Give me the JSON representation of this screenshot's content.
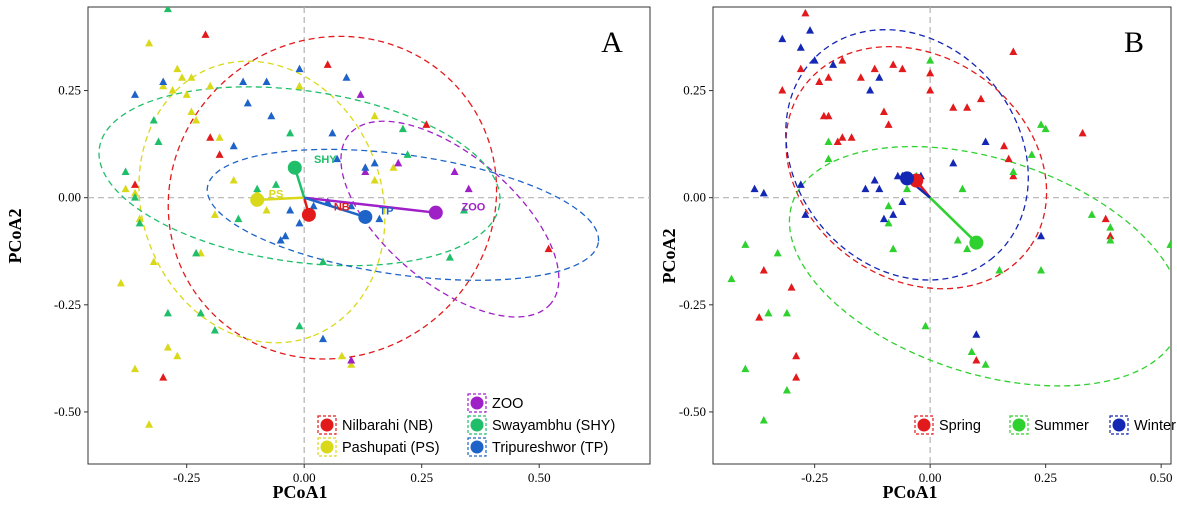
{
  "chart_data": [
    {
      "type": "scatter",
      "panel_label": "A",
      "xlabel": "PCoA1",
      "ylabel": "PCoA2",
      "xlim": [
        -0.46,
        0.68
      ],
      "ylim": [
        -0.585,
        0.445
      ],
      "xticks": [
        -0.25,
        0.0,
        0.25,
        0.5
      ],
      "xtick_labels": [
        "-0.25",
        "0.00",
        "0.25",
        "0.50"
      ],
      "yticks": [
        0.25,
        0.0,
        -0.25,
        -0.5
      ],
      "ytick_labels": [
        "0.25",
        "0.00",
        "-0.25",
        "-0.50"
      ],
      "grid": false,
      "reference_lines": [
        0,
        0
      ],
      "legend_position": "bottom-right",
      "groups": [
        {
          "name": "Nilbarahi (NB)",
          "label": "NB",
          "color": "#e31a1c",
          "centroid": [
            0.01,
            -0.04
          ],
          "label_pos": [
            0.08,
            -0.02
          ],
          "ellipse": {
            "cx": 0.06,
            "cy": 0.0,
            "rx": 0.355,
            "ry": 0.37,
            "angle": 35
          },
          "points": [
            [
              -0.21,
              0.38
            ],
            [
              -0.2,
              0.14
            ],
            [
              0.05,
              0.31
            ],
            [
              0.26,
              0.17
            ],
            [
              -0.3,
              -0.42
            ],
            [
              -0.36,
              0.03
            ],
            [
              0.52,
              -0.12
            ],
            [
              -0.18,
              0.1
            ]
          ]
        },
        {
          "name": "Pashupati (PS)",
          "label": "PS",
          "color": "#d9d91a",
          "centroid": [
            -0.1,
            -0.005
          ],
          "label_pos": [
            -0.06,
            0.01
          ],
          "ellipse": {
            "cx": -0.09,
            "cy": -0.01,
            "rx": 0.305,
            "ry": 0.28,
            "angle": -70
          },
          "points": [
            [
              -0.33,
              0.36
            ],
            [
              -0.3,
              0.26
            ],
            [
              -0.28,
              0.25
            ],
            [
              -0.27,
              0.3
            ],
            [
              -0.26,
              0.28
            ],
            [
              -0.24,
              0.28
            ],
            [
              -0.25,
              0.24
            ],
            [
              -0.24,
              0.2
            ],
            [
              -0.23,
              0.18
            ],
            [
              -0.2,
              0.26
            ],
            [
              -0.18,
              0.14
            ],
            [
              -0.38,
              0.02
            ],
            [
              -0.36,
              0.01
            ],
            [
              -0.35,
              -0.05
            ],
            [
              -0.32,
              -0.15
            ],
            [
              -0.39,
              -0.2
            ],
            [
              -0.36,
              -0.4
            ],
            [
              -0.33,
              -0.53
            ],
            [
              -0.29,
              -0.35
            ],
            [
              -0.27,
              -0.37
            ],
            [
              -0.22,
              -0.13
            ],
            [
              -0.19,
              -0.04
            ],
            [
              -0.15,
              0.04
            ],
            [
              -0.1,
              0.01
            ],
            [
              -0.08,
              -0.03
            ],
            [
              -0.01,
              0.26
            ],
            [
              0.08,
              -0.37
            ],
            [
              0.1,
              -0.39
            ],
            [
              0.15,
              0.04
            ],
            [
              0.15,
              0.19
            ],
            [
              0.19,
              0.07
            ]
          ]
        },
        {
          "name": "ZOO",
          "label": "ZOO",
          "color": "#a020c8",
          "centroid": [
            0.28,
            -0.035
          ],
          "label_pos": [
            0.36,
            -0.02
          ],
          "ellipse": {
            "cx": 0.31,
            "cy": -0.05,
            "rx": 0.28,
            "ry": 0.15,
            "angle": -40
          },
          "points": [
            [
              0.12,
              0.24
            ],
            [
              0.2,
              0.08
            ],
            [
              0.13,
              0.06
            ],
            [
              0.32,
              0.06
            ],
            [
              0.35,
              0.02
            ],
            [
              0.1,
              -0.38
            ]
          ]
        },
        {
          "name": "Swayambhu (SHY)",
          "label": "SHY",
          "color": "#1fbf6a",
          "centroid": [
            -0.02,
            0.07
          ],
          "label_pos": [
            0.045,
            0.09
          ],
          "ellipse": {
            "cx": -0.01,
            "cy": 0.05,
            "rx": 0.43,
            "ry": 0.2,
            "angle": -8
          },
          "points": [
            [
              -0.29,
              0.44
            ],
            [
              -0.32,
              0.18
            ],
            [
              -0.31,
              0.13
            ],
            [
              -0.38,
              0.06
            ],
            [
              -0.36,
              0.0
            ],
            [
              -0.23,
              -0.13
            ],
            [
              -0.35,
              -0.06
            ],
            [
              -0.22,
              -0.27
            ],
            [
              -0.29,
              -0.27
            ],
            [
              -0.19,
              -0.31
            ],
            [
              -0.14,
              -0.05
            ],
            [
              -0.1,
              0.02
            ],
            [
              -0.06,
              0.03
            ],
            [
              -0.03,
              0.15
            ],
            [
              -0.02,
              0.07
            ],
            [
              -0.01,
              -0.3
            ],
            [
              0.04,
              -0.15
            ],
            [
              0.21,
              0.16
            ],
            [
              0.34,
              -0.03
            ],
            [
              0.31,
              -0.14
            ],
            [
              0.22,
              0.1
            ]
          ]
        },
        {
          "name": "Tripureshwor (TP)",
          "label": "TP",
          "color": "#1e64c8",
          "centroid": [
            0.13,
            -0.045
          ],
          "label_pos": [
            0.175,
            -0.03
          ],
          "ellipse": {
            "cx": 0.21,
            "cy": -0.04,
            "rx": 0.42,
            "ry": 0.14,
            "angle": -8
          },
          "points": [
            [
              -0.36,
              0.24
            ],
            [
              -0.3,
              0.27
            ],
            [
              -0.13,
              0.27
            ],
            [
              -0.08,
              0.27
            ],
            [
              0.09,
              0.28
            ],
            [
              0.06,
              0.15
            ],
            [
              -0.07,
              0.19
            ],
            [
              -0.12,
              0.22
            ],
            [
              0.07,
              0.09
            ],
            [
              0.13,
              0.07
            ],
            [
              0.15,
              0.08
            ],
            [
              0.02,
              -0.02
            ],
            [
              -0.03,
              -0.03
            ],
            [
              -0.01,
              -0.06
            ],
            [
              0.05,
              -0.01
            ],
            [
              -0.01,
              0.3
            ],
            [
              -0.04,
              -0.09
            ],
            [
              0.04,
              -0.33
            ],
            [
              0.1,
              -0.02
            ],
            [
              0.16,
              -0.05
            ],
            [
              -0.15,
              0.12
            ],
            [
              -0.05,
              -0.1
            ]
          ]
        }
      ]
    },
    {
      "type": "scatter",
      "panel_label": "B",
      "xlabel": "PCoA1",
      "ylabel": "PCoA2",
      "xlim": [
        -0.47,
        0.66
      ],
      "ylim": [
        -0.585,
        0.445
      ],
      "xticks": [
        -0.25,
        0.0,
        0.25,
        0.5
      ],
      "xtick_labels": [
        "-0.25",
        "0.00",
        "0.25",
        "0.50"
      ],
      "yticks": [
        0.25,
        0.0,
        -0.25,
        -0.5
      ],
      "ytick_labels": [
        "0.25",
        "0.00",
        "-0.25",
        "-0.50"
      ],
      "grid": false,
      "reference_lines": [
        0,
        0
      ],
      "legend_position": "bottom-right",
      "groups": [
        {
          "name": "Spring",
          "color": "#e31a1c",
          "centroid": [
            -0.03,
            0.04
          ],
          "ellipse": {
            "cx": -0.03,
            "cy": 0.07,
            "rx": 0.3,
            "ry": 0.26,
            "angle": -35
          },
          "points": [
            [
              -0.32,
              0.25
            ],
            [
              -0.28,
              0.3
            ],
            [
              -0.27,
              0.43
            ],
            [
              -0.24,
              0.27
            ],
            [
              -0.22,
              0.28
            ],
            [
              -0.19,
              0.32
            ],
            [
              -0.23,
              0.19
            ],
            [
              -0.22,
              0.19
            ],
            [
              -0.19,
              0.14
            ],
            [
              -0.2,
              0.13
            ],
            [
              -0.17,
              0.14
            ],
            [
              -0.15,
              0.28
            ],
            [
              -0.12,
              0.3
            ],
            [
              -0.08,
              0.31
            ],
            [
              -0.1,
              0.2
            ],
            [
              -0.09,
              0.17
            ],
            [
              -0.06,
              0.3
            ],
            [
              0.0,
              0.29
            ],
            [
              0.0,
              0.25
            ],
            [
              0.05,
              0.21
            ],
            [
              0.08,
              0.21
            ],
            [
              0.11,
              0.23
            ],
            [
              0.17,
              0.09
            ],
            [
              0.16,
              0.12
            ],
            [
              0.18,
              0.05
            ],
            [
              0.33,
              0.15
            ],
            [
              0.18,
              0.34
            ],
            [
              0.38,
              -0.05
            ],
            [
              0.39,
              -0.09
            ],
            [
              -0.36,
              -0.17
            ],
            [
              -0.29,
              -0.42
            ],
            [
              -0.29,
              -0.37
            ],
            [
              0.1,
              -0.38
            ],
            [
              -0.3,
              -0.21
            ],
            [
              -0.37,
              -0.28
            ]
          ]
        },
        {
          "name": "Summer",
          "color": "#2ed12e",
          "centroid": [
            0.1,
            -0.105
          ],
          "ellipse": {
            "cx": 0.12,
            "cy": -0.16,
            "rx": 0.44,
            "ry": 0.25,
            "angle": -18
          },
          "points": [
            [
              0.0,
              0.32
            ],
            [
              -0.22,
              0.13
            ],
            [
              -0.22,
              0.09
            ],
            [
              -0.4,
              -0.11
            ],
            [
              -0.43,
              -0.19
            ],
            [
              -0.35,
              -0.27
            ],
            [
              -0.31,
              -0.27
            ],
            [
              -0.36,
              -0.52
            ],
            [
              -0.31,
              -0.45
            ],
            [
              -0.4,
              -0.4
            ],
            [
              -0.33,
              -0.13
            ],
            [
              -0.09,
              -0.06
            ],
            [
              -0.05,
              0.02
            ],
            [
              -0.09,
              -0.02
            ],
            [
              -0.03,
              0.05
            ],
            [
              0.07,
              0.02
            ],
            [
              0.06,
              -0.1
            ],
            [
              0.08,
              -0.12
            ],
            [
              0.15,
              -0.17
            ],
            [
              0.18,
              0.06
            ],
            [
              0.24,
              0.17
            ],
            [
              0.22,
              0.1
            ],
            [
              0.35,
              -0.04
            ],
            [
              0.39,
              -0.1
            ],
            [
              0.39,
              -0.07
            ],
            [
              0.52,
              -0.11
            ],
            [
              0.25,
              0.16
            ],
            [
              0.24,
              -0.17
            ],
            [
              -0.01,
              -0.3
            ],
            [
              0.09,
              -0.36
            ],
            [
              0.12,
              -0.39
            ],
            [
              -0.08,
              -0.12
            ]
          ]
        },
        {
          "name": "Winter",
          "color": "#1427b4",
          "centroid": [
            -0.05,
            0.045
          ],
          "ellipse": {
            "cx": -0.05,
            "cy": 0.1,
            "rx": 0.29,
            "ry": 0.26,
            "angle": -50
          },
          "points": [
            [
              -0.32,
              0.37
            ],
            [
              -0.28,
              0.35
            ],
            [
              -0.26,
              0.39
            ],
            [
              -0.21,
              0.31
            ],
            [
              -0.25,
              0.32
            ],
            [
              -0.13,
              0.25
            ],
            [
              -0.11,
              0.28
            ],
            [
              -0.38,
              0.02
            ],
            [
              -0.36,
              0.01
            ],
            [
              -0.28,
              0.03
            ],
            [
              -0.14,
              0.02
            ],
            [
              -0.11,
              0.02
            ],
            [
              -0.12,
              0.04
            ],
            [
              -0.06,
              -0.01
            ],
            [
              -0.06,
              0.05
            ],
            [
              -0.08,
              -0.04
            ],
            [
              -0.1,
              -0.05
            ],
            [
              -0.07,
              0.05
            ],
            [
              -0.02,
              0.05
            ],
            [
              0.05,
              0.08
            ],
            [
              0.12,
              0.13
            ],
            [
              0.24,
              -0.09
            ],
            [
              -0.27,
              -0.04
            ],
            [
              0.1,
              -0.32
            ],
            [
              -0.04,
              0.04
            ]
          ]
        }
      ]
    }
  ]
}
